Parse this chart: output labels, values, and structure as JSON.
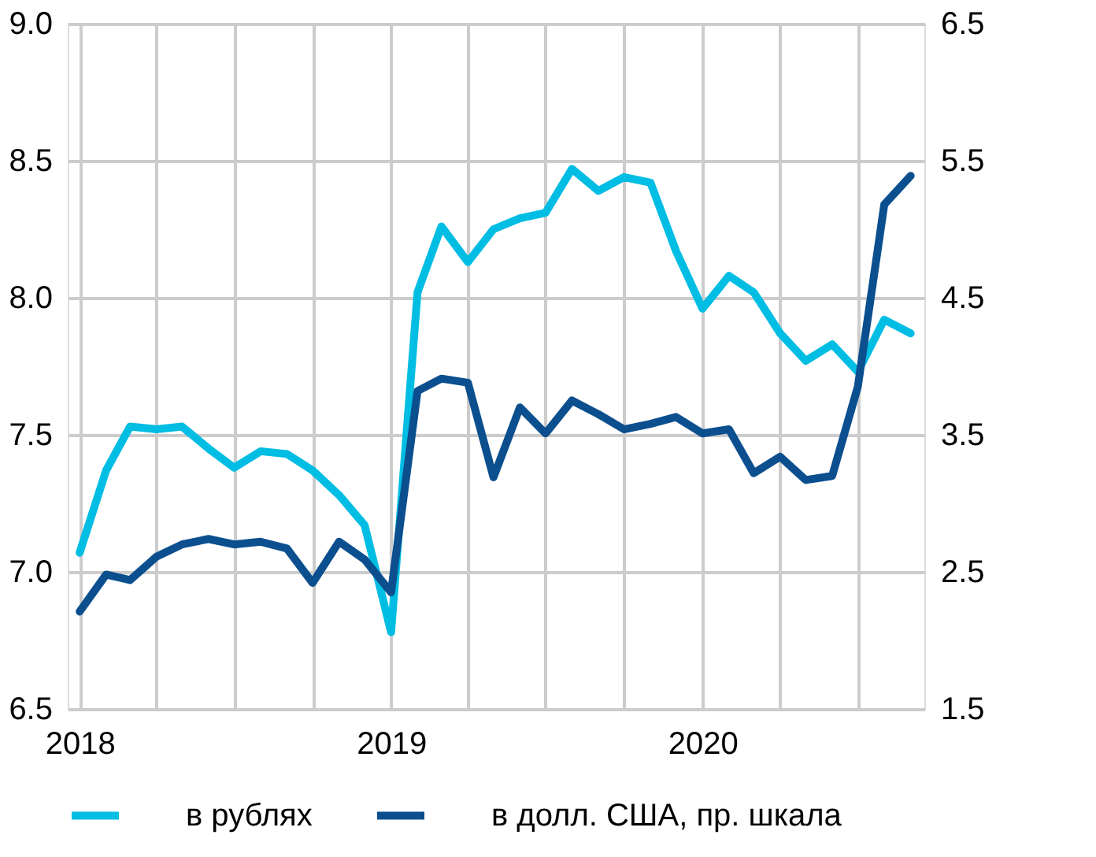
{
  "chart_data": {
    "type": "line",
    "x": [
      "2018-01",
      "2018-02",
      "2018-03",
      "2018-04",
      "2018-05",
      "2018-06",
      "2018-07",
      "2018-08",
      "2018-09",
      "2018-10",
      "2018-11",
      "2018-12",
      "2019-01",
      "2019-02",
      "2019-03",
      "2019-04",
      "2019-05",
      "2019-06",
      "2019-07",
      "2019-08",
      "2019-09",
      "2019-10",
      "2019-11",
      "2019-12",
      "2020-01",
      "2020-02",
      "2020-03",
      "2020-04",
      "2020-05",
      "2020-06",
      "2020-07",
      "2020-08",
      "2020-09"
    ],
    "series": [
      {
        "name": "в рублях",
        "color": "#00bde3",
        "values": [
          7.07,
          7.37,
          7.53,
          7.52,
          7.53,
          7.45,
          7.38,
          7.44,
          7.43,
          7.37,
          7.28,
          7.17,
          6.78,
          8.02,
          8.26,
          8.13,
          8.25,
          8.29,
          8.31,
          8.47,
          8.39,
          8.44,
          8.42,
          8.17,
          7.96,
          8.08,
          8.02,
          7.87,
          7.77,
          7.83,
          7.73,
          7.92,
          7.87
        ]
      },
      {
        "name": "в долл. США, пр. шкала",
        "color": "#0b4f8f",
        "axis": "y2",
        "values": [
          2.21,
          2.48,
          2.44,
          2.61,
          2.7,
          2.74,
          2.7,
          2.72,
          2.67,
          2.42,
          2.72,
          2.59,
          2.35,
          3.82,
          3.91,
          3.88,
          3.19,
          3.7,
          3.51,
          3.75,
          3.65,
          3.54,
          3.58,
          3.63,
          3.51,
          3.54,
          3.22,
          3.34,
          3.17,
          3.2,
          3.85,
          5.18,
          5.39
        ]
      }
    ],
    "xlim": [
      "2017-12-18",
      "2020-09-17"
    ],
    "xticks": [
      {
        "value": "2018-01",
        "label": "2018"
      },
      {
        "value": "2018-04",
        "label": null
      },
      {
        "value": "2018-07",
        "label": null
      },
      {
        "value": "2018-10",
        "label": null
      },
      {
        "value": "2019-01",
        "label": "2019"
      },
      {
        "value": "2019-04",
        "label": null
      },
      {
        "value": "2019-07",
        "label": null
      },
      {
        "value": "2019-10",
        "label": null
      },
      {
        "value": "2020-01",
        "label": "2020"
      },
      {
        "value": "2020-04",
        "label": null
      },
      {
        "value": "2020-07",
        "label": null
      }
    ],
    "ylim": [
      6.5,
      9
    ],
    "yticks": [
      {
        "value": 6.5,
        "label": "6.5"
      },
      {
        "value": 7,
        "label": "7.0"
      },
      {
        "value": 7.5,
        "label": "7.5"
      },
      {
        "value": 8,
        "label": "8.0"
      },
      {
        "value": 8.5,
        "label": "8.5"
      },
      {
        "value": 9,
        "label": "9.0"
      }
    ],
    "y2lim": [
      1.5,
      6.5
    ],
    "y2ticks": [
      {
        "value": 1.5,
        "label": "1.5"
      },
      {
        "value": 2.5,
        "label": "2.5"
      },
      {
        "value": 3.5,
        "label": "3.5"
      },
      {
        "value": 4.5,
        "label": "4.5"
      },
      {
        "value": 5.5,
        "label": "5.5"
      },
      {
        "value": 6.5,
        "label": "6.5"
      }
    ],
    "grid": true,
    "legend": "bottom",
    "marker": "none",
    "line_style": "solid"
  }
}
